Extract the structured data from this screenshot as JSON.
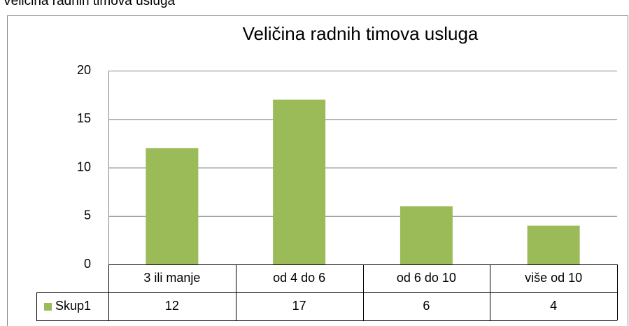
{
  "caption": "Veličina radnih timova usluga",
  "chart_data": {
    "type": "bar",
    "title": "Veličina radnih timova usluga",
    "categories": [
      "3 ili manje",
      "od 4 do 6",
      "od 6 do 10",
      "više od 10"
    ],
    "series": [
      {
        "name": "Skup1",
        "color": "#9bbb59",
        "values": [
          12,
          17,
          6,
          4
        ]
      }
    ],
    "ylim": [
      0,
      20
    ],
    "yticks": [
      0,
      5,
      10,
      15,
      20
    ],
    "grid": true,
    "data_table": true
  }
}
